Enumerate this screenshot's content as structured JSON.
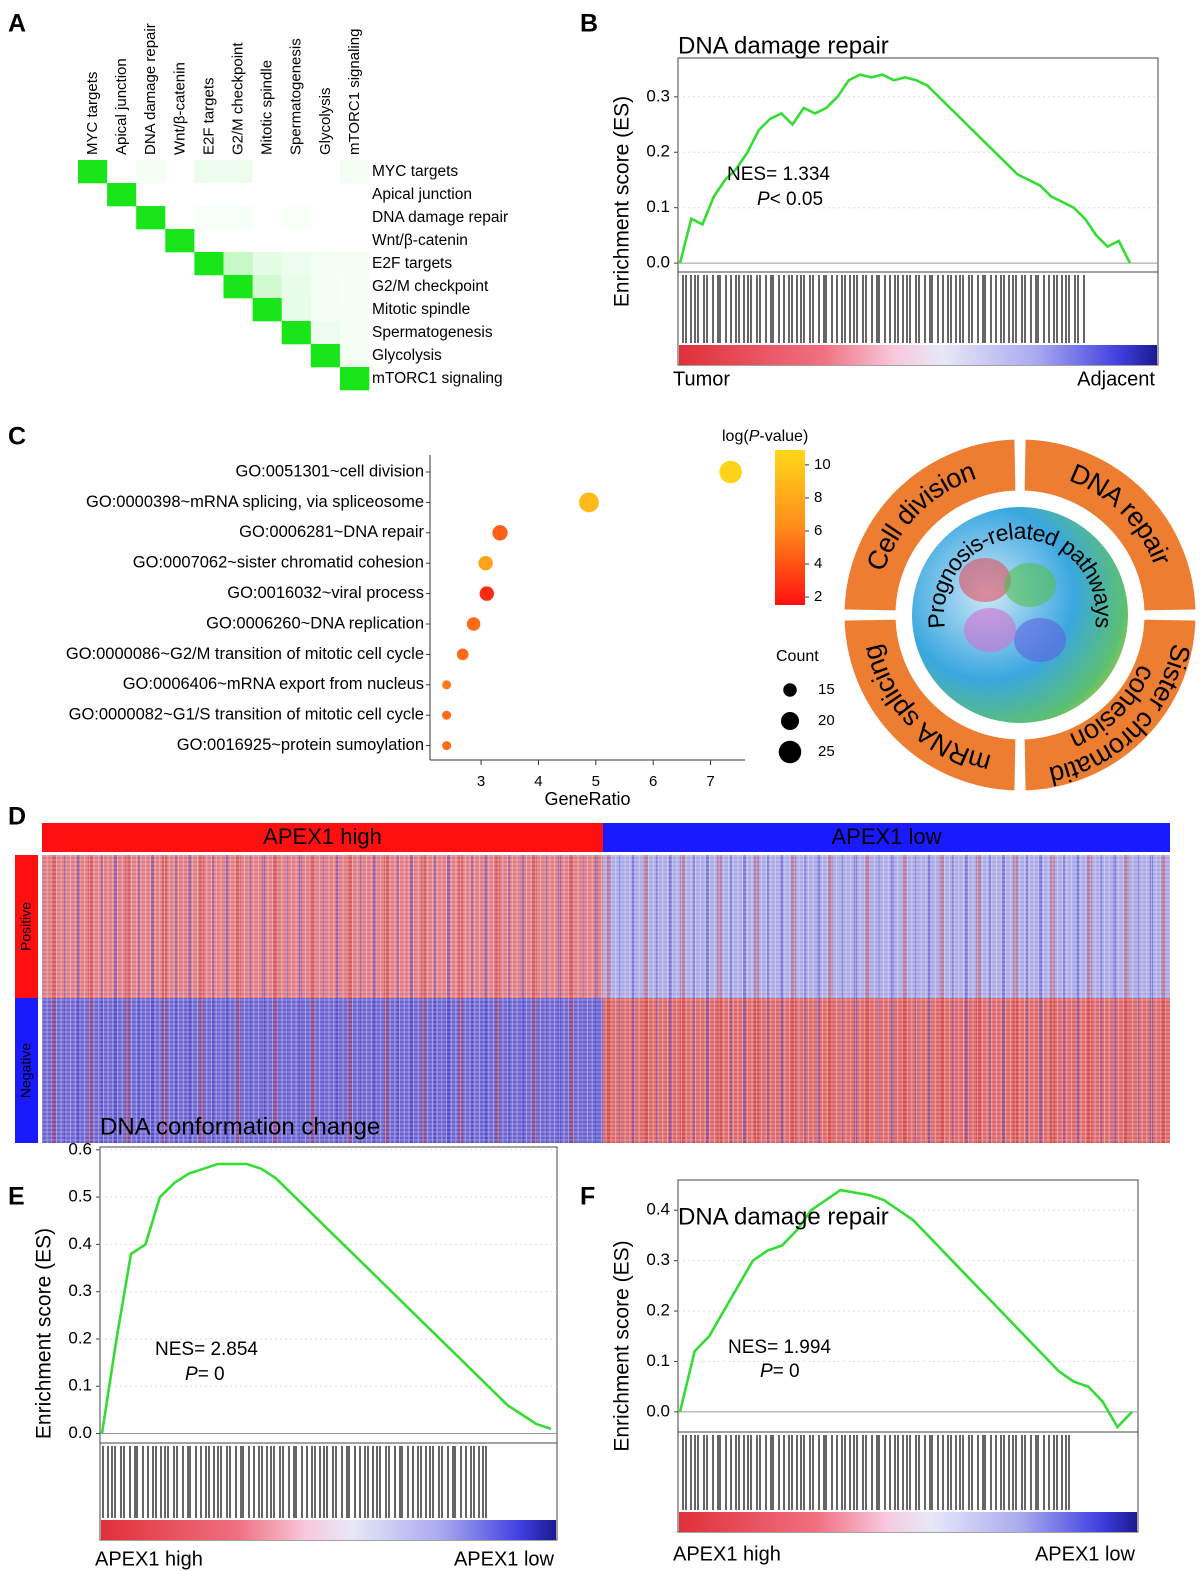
{
  "chart_data": [
    {
      "panel": "A",
      "type": "heatmap",
      "categories": [
        "MYC targets",
        "Apical junction",
        "DNA damage repair",
        "Wnt/β-catenin",
        "E2F targets",
        "G2/M checkpoint",
        "Mitotic spindle",
        "Spermatogenesis",
        "Glycolysis",
        "mTORC1 signaling"
      ],
      "label_colors": [
        "#000000",
        "#000000",
        "#e8141c",
        "#000000",
        "#000000",
        "#000000",
        "#000000",
        "#000000",
        "#000000",
        "#000000"
      ],
      "color": "#19e619",
      "matrix": [
        [
          1,
          0,
          0.05,
          0,
          0.08,
          0.08,
          0,
          0,
          0,
          0.05
        ],
        [
          null,
          1,
          0,
          0,
          0,
          0,
          0,
          0,
          0,
          0
        ],
        [
          null,
          null,
          1,
          0,
          0.03,
          0.03,
          0,
          0.02,
          0,
          0
        ],
        [
          null,
          null,
          null,
          1,
          0,
          0,
          0,
          0,
          0,
          0
        ],
        [
          null,
          null,
          null,
          null,
          1,
          0.25,
          0.12,
          0.08,
          0.06,
          0.05
        ],
        [
          null,
          null,
          null,
          null,
          null,
          1,
          0.2,
          0.1,
          0.06,
          0.04
        ],
        [
          null,
          null,
          null,
          null,
          null,
          null,
          1,
          0.1,
          0.05,
          0.04
        ],
        [
          null,
          null,
          null,
          null,
          null,
          null,
          null,
          1,
          0.08,
          0.04
        ],
        [
          null,
          null,
          null,
          null,
          null,
          null,
          null,
          null,
          1,
          0.06
        ],
        [
          null,
          null,
          null,
          null,
          null,
          null,
          null,
          null,
          null,
          1
        ]
      ]
    },
    {
      "panel": "B",
      "type": "line",
      "title": "DNA damage repair",
      "ylabel": "Enrichment score (ES)",
      "values": [
        0,
        0.08,
        0.07,
        0.12,
        0.15,
        0.17,
        0.2,
        0.24,
        0.26,
        0.27,
        0.25,
        0.28,
        0.27,
        0.28,
        0.3,
        0.33,
        0.34,
        0.335,
        0.34,
        0.33,
        0.335,
        0.33,
        0.32,
        0.3,
        0.28,
        0.26,
        0.24,
        0.22,
        0.2,
        0.18,
        0.16,
        0.15,
        0.14,
        0.12,
        0.11,
        0.1,
        0.08,
        0.05,
        0.03,
        0.04,
        0
      ],
      "color": "#33dd33",
      "ylim": [
        -0.016,
        0.37
      ],
      "yticks": [
        {
          "value": 0,
          "label": "0.0"
        },
        0.1,
        0.2,
        0.3
      ],
      "grid": true,
      "nes": "NES= 1.334",
      "p_symbol": "P",
      "p_text": "< 0.05",
      "left_label": "Tumor",
      "left_color": "#e8141c",
      "right_label": "Adjacent",
      "right_color": "#1a1ae6"
    },
    {
      "panel": "C",
      "type": "dot",
      "categories": [
        "GO:0051301~cell division",
        "GO:0000398~mRNA splicing, via spliceosome",
        "GO:0006281~DNA repair",
        "GO:0007062~sister chromatid cohesion",
        "GO:0016032~viral process",
        "GO:0006260~DNA replication",
        "GO:0000086~G2/M transition of mitotic cell cycle",
        "GO:0006406~mRNA export from nucleus",
        "GO:0000082~G1/S transition of mitotic cell cycle",
        "GO:0016925~protein sumoylation"
      ],
      "label_colors": [
        "#000000",
        "#000000",
        "#e8141c",
        "#000000",
        "#000000",
        "#000000",
        "#000000",
        "#000000",
        "#000000",
        "#000000"
      ],
      "x": [
        7.35,
        4.88,
        3.33,
        3.08,
        3.1,
        2.87,
        2.68,
        2.4,
        2.4,
        2.4
      ],
      "counts": [
        25,
        22,
        17,
        16,
        16,
        15,
        13,
        10,
        10,
        10
      ],
      "pvalues": [
        10.5,
        9,
        4.5,
        7.5,
        2.5,
        5,
        5,
        5.5,
        5,
        5
      ],
      "xlim": [
        2.11,
        7.6
      ],
      "xticks": [
        3,
        4,
        5,
        6,
        7
      ],
      "xlabel": "GeneRatio",
      "colorbar_title": [
        "log(",
        "P",
        "-value)"
      ],
      "clim": [
        1.52,
        10.9
      ],
      "cticks": [
        2,
        4,
        6,
        8,
        10
      ],
      "colormap": [
        "#ff1010",
        "#ff8c1a",
        "#ffd81a"
      ],
      "count_title": "Count",
      "count_legend": [
        15,
        20,
        25
      ]
    },
    {
      "type": "diagram",
      "center_label": "Prognosis-related pathways",
      "color": "#ed7d31",
      "segments": [
        [
          "Cell division"
        ],
        [
          "DNA repair"
        ],
        [
          "Sister chromatid",
          "cohesion"
        ],
        [
          "mRNA splicing"
        ]
      ]
    },
    {
      "panel": "D",
      "type": "heatmap-groups",
      "column_groups": [
        {
          "name": "APEX1 high",
          "color": "#ff1010"
        },
        {
          "name": "APEX1 low",
          "color": "#1a1aff"
        }
      ],
      "row_groups": [
        {
          "name": "Positive",
          "color": "#ff1010"
        },
        {
          "name": "Negative",
          "color": "#1a1aff"
        }
      ]
    },
    {
      "panel": "E",
      "type": "line",
      "title": "DNA conformation change",
      "ylabel": "Enrichment score (ES)",
      "values": [
        0,
        0.2,
        0.38,
        0.4,
        0.5,
        0.53,
        0.55,
        0.56,
        0.57,
        0.57,
        0.57,
        0.56,
        0.54,
        0.51,
        0.48,
        0.45,
        0.42,
        0.39,
        0.36,
        0.33,
        0.3,
        0.27,
        0.24,
        0.21,
        0.18,
        0.15,
        0.12,
        0.09,
        0.06,
        0.04,
        0.02,
        0.01
      ],
      "color": "#33dd33",
      "ylim": [
        -0.02,
        0.606
      ],
      "yticks": [
        {
          "value": 0,
          "label": "0.0"
        },
        0.1,
        0.2,
        0.3,
        0.4,
        0.5,
        0.6
      ],
      "grid": true,
      "nes": "NES= 2.854",
      "p_symbol": "P",
      "p_text": "= 0",
      "left_label": "APEX1 high",
      "left_color": "#e8141c",
      "right_label": "APEX1 low",
      "right_color": "#1a1ae6"
    },
    {
      "panel": "F",
      "type": "line",
      "title": "DNA damage repair",
      "ylabel": "Enrichment score (ES)",
      "values": [
        0,
        0.12,
        0.15,
        0.2,
        0.25,
        0.3,
        0.32,
        0.33,
        0.36,
        0.4,
        0.42,
        0.44,
        0.435,
        0.43,
        0.42,
        0.4,
        0.38,
        0.35,
        0.32,
        0.29,
        0.26,
        0.23,
        0.2,
        0.17,
        0.14,
        0.11,
        0.08,
        0.06,
        0.05,
        0.02,
        -0.03,
        0
      ],
      "color": "#33dd33",
      "ylim": [
        -0.04,
        0.46
      ],
      "yticks": [
        {
          "value": 0,
          "label": "0.0"
        },
        0.1,
        0.2,
        0.3,
        0.4
      ],
      "grid": true,
      "nes": "NES= 1.994",
      "p_symbol": "P",
      "p_text": "= 0",
      "left_label": "APEX1 high",
      "left_color": "#e8141c",
      "right_label": "APEX1 low",
      "right_color": "#1a1ae6"
    }
  ]
}
